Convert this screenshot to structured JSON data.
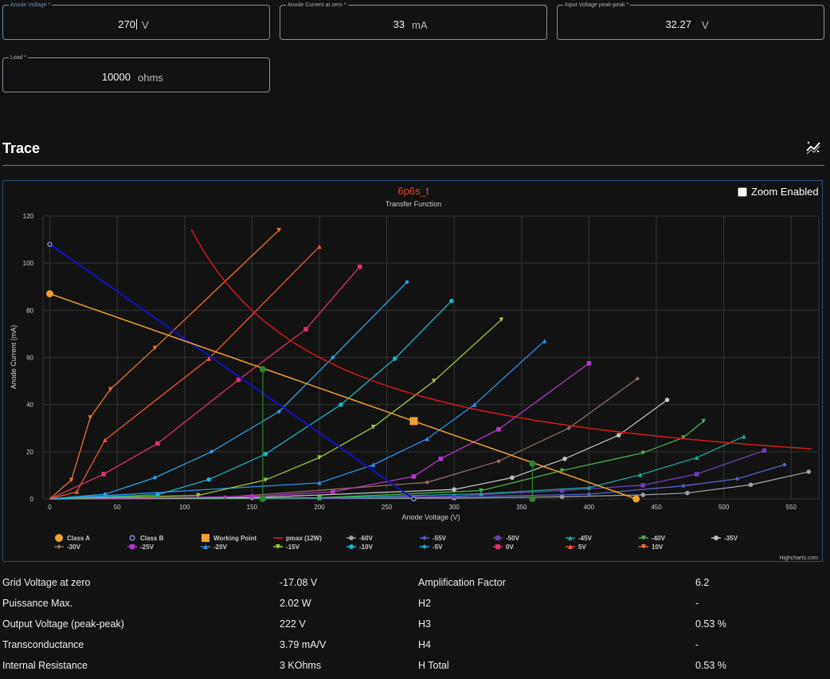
{
  "inputs": {
    "anode_voltage": {
      "label": "Anode Voltage *",
      "value": "270",
      "unit": "V"
    },
    "anode_current": {
      "label": "Anode Current at zero *",
      "value": "33",
      "unit": "mA"
    },
    "input_voltage": {
      "label": "Input Voltage peak-peak *",
      "value": "32.27",
      "unit": "V"
    },
    "load": {
      "label": "Load *",
      "value": "10000",
      "unit": "ohms"
    }
  },
  "section_title": "Trace",
  "zoom_label": "Zoom Enabled",
  "credits": "Highcharts.com",
  "colors": {
    "accent": "#6f8fb5",
    "title": "#e8492f",
    "classA": "#f0a030",
    "classB": "#1010c8",
    "pmax": "#e01818",
    "wp": "#2a8a2a"
  },
  "chart_data": {
    "type": "line",
    "title": "6p6s_t",
    "subtitle": "Transfer Function",
    "xlabel": "Anode Voltage (V)",
    "ylabel": "Anode Current (mA)",
    "xlim": [
      0,
      570
    ],
    "ylim": [
      0,
      120
    ],
    "xticks": [
      0,
      50,
      100,
      150,
      200,
      250,
      300,
      350,
      400,
      450,
      500,
      550
    ],
    "yticks": [
      0,
      20,
      40,
      60,
      80,
      100,
      120
    ],
    "grid": true,
    "legend_position": "bottom",
    "class_a": {
      "name": "Class A",
      "color": "#f0a030",
      "points": [
        [
          0,
          87
        ],
        [
          270,
          33
        ],
        [
          435,
          0
        ]
      ],
      "markers": [
        [
          0,
          87
        ],
        [
          435,
          0
        ]
      ]
    },
    "class_b": {
      "name": "Class B",
      "color": "#1010c8",
      "points": [
        [
          0,
          108
        ],
        [
          270,
          0
        ]
      ],
      "markers": [
        [
          0,
          108
        ],
        [
          270,
          0
        ]
      ]
    },
    "working_point": {
      "name": "Working Point",
      "color": "#f0a030",
      "x": 270,
      "y": 33
    },
    "pmax": {
      "name": "pmax (12W)",
      "color": "#e01818",
      "watts": 12,
      "x_from": 105,
      "x_to": 565
    },
    "swing": {
      "color": "#2a8a2a",
      "points": [
        [
          158,
          55
        ],
        [
          158,
          0
        ],
        [
          358,
          15
        ],
        [
          358,
          0
        ]
      ]
    },
    "series": [
      {
        "name": "-60V",
        "color": "#9aa0a6",
        "points": [
          [
            0,
            0
          ],
          [
            300,
            0.3
          ],
          [
            380,
            0.9
          ],
          [
            440,
            1.7
          ],
          [
            473,
            2.5
          ],
          [
            520,
            6
          ],
          [
            563,
            11.5
          ]
        ]
      },
      {
        "name": "-55V",
        "color": "#5465c8",
        "points": [
          [
            0,
            0
          ],
          [
            200,
            0.2
          ],
          [
            300,
            0.8
          ],
          [
            400,
            2
          ],
          [
            470,
            5.5
          ],
          [
            510,
            8.5
          ],
          [
            545,
            14.5
          ]
        ]
      },
      {
        "name": "-50V",
        "color": "#6c3fb0",
        "points": [
          [
            0,
            0
          ],
          [
            200,
            0.3
          ],
          [
            300,
            1.2
          ],
          [
            380,
            3.5
          ],
          [
            440,
            5.8
          ],
          [
            480,
            10.5
          ],
          [
            530,
            20.5
          ]
        ]
      },
      {
        "name": "-45V",
        "color": "#1aa59a",
        "points": [
          [
            0,
            0
          ],
          [
            200,
            0.4
          ],
          [
            320,
            2.2
          ],
          [
            400,
            4.8
          ],
          [
            438,
            10.2
          ],
          [
            480,
            17.5
          ],
          [
            515,
            26.5
          ]
        ]
      },
      {
        "name": "-40V",
        "color": "#4caf50",
        "points": [
          [
            0,
            0
          ],
          [
            200,
            0.5
          ],
          [
            320,
            3.5
          ],
          [
            380,
            12
          ],
          [
            440,
            19.5
          ],
          [
            470,
            26
          ],
          [
            485,
            33
          ]
        ]
      },
      {
        "name": "-35V",
        "color": "#c0c0c0",
        "points": [
          [
            0,
            0
          ],
          [
            150,
            0.5
          ],
          [
            300,
            4
          ],
          [
            343,
            9
          ],
          [
            382,
            17
          ],
          [
            422,
            27
          ],
          [
            458,
            42
          ]
        ]
      },
      {
        "name": "-30V",
        "color": "#8d6e63",
        "points": [
          [
            0,
            0
          ],
          [
            130,
            0.7
          ],
          [
            280,
            7
          ],
          [
            333,
            16
          ],
          [
            385,
            30
          ],
          [
            436,
            51
          ]
        ]
      },
      {
        "name": "-25V",
        "color": "#b03ac8",
        "points": [
          [
            0,
            0
          ],
          [
            150,
            1
          ],
          [
            210,
            3
          ],
          [
            270,
            9.5
          ],
          [
            290,
            17
          ],
          [
            333,
            29.5
          ],
          [
            400,
            57.5
          ]
        ]
      },
      {
        "name": "-20V",
        "color": "#2f8fe8",
        "points": [
          [
            0,
            0
          ],
          [
            200,
            6.8
          ],
          [
            240,
            14.5
          ],
          [
            280,
            25.5
          ],
          [
            315,
            40
          ],
          [
            367,
            67
          ]
        ]
      },
      {
        "name": "-15V",
        "color": "#9ccc3c",
        "points": [
          [
            0,
            0
          ],
          [
            110,
            1.5
          ],
          [
            160,
            8
          ],
          [
            200,
            17.5
          ],
          [
            240,
            30.5
          ],
          [
            285,
            50
          ],
          [
            335,
            76
          ]
        ]
      },
      {
        "name": "-10V",
        "color": "#19b5c8",
        "points": [
          [
            0,
            0
          ],
          [
            80,
            1.8
          ],
          [
            118,
            8.2
          ],
          [
            160,
            19
          ],
          [
            216,
            40
          ],
          [
            256,
            59.5
          ],
          [
            298,
            84
          ]
        ]
      },
      {
        "name": "-5V",
        "color": "#2fa0e0",
        "points": [
          [
            0,
            0
          ],
          [
            41,
            2
          ],
          [
            78,
            9
          ],
          [
            120,
            20
          ],
          [
            170,
            37
          ],
          [
            210,
            60
          ],
          [
            265,
            92
          ]
        ]
      },
      {
        "name": "0V",
        "color": "#e0306a",
        "points": [
          [
            0,
            0
          ],
          [
            40,
            10.5
          ],
          [
            80,
            23.5
          ],
          [
            140,
            50.5
          ],
          [
            190,
            72
          ],
          [
            230,
            98.5
          ]
        ]
      },
      {
        "name": "5V",
        "color": "#f05535",
        "points": [
          [
            0,
            0
          ],
          [
            20,
            3
          ],
          [
            41,
            25
          ],
          [
            118,
            59.5
          ],
          [
            200,
            107
          ]
        ]
      },
      {
        "name": "10V",
        "color": "#f07030",
        "points": [
          [
            0,
            0
          ],
          [
            16,
            8
          ],
          [
            30,
            34.5
          ],
          [
            45,
            46.5
          ],
          [
            78,
            64
          ],
          [
            170,
            114
          ]
        ]
      }
    ]
  },
  "stats": [
    {
      "label": "Grid Voltage at zero",
      "value": "-17.08 V",
      "label2": "Amplification Factor",
      "value2": "6.2"
    },
    {
      "label": "Puissance Max.",
      "value": "2.02 W",
      "label2": "H2",
      "value2": "-"
    },
    {
      "label": "Output Voltage (peak-peak)",
      "value": "222 V",
      "label2": "H3",
      "value2": "0.53 %"
    },
    {
      "label": "Transconductance",
      "value": "3.79 mA/V",
      "label2": "H4",
      "value2": "-"
    },
    {
      "label": "Internal Resistance",
      "value": "3 KOhms",
      "label2": "H Total",
      "value2": "0.53 %"
    }
  ]
}
